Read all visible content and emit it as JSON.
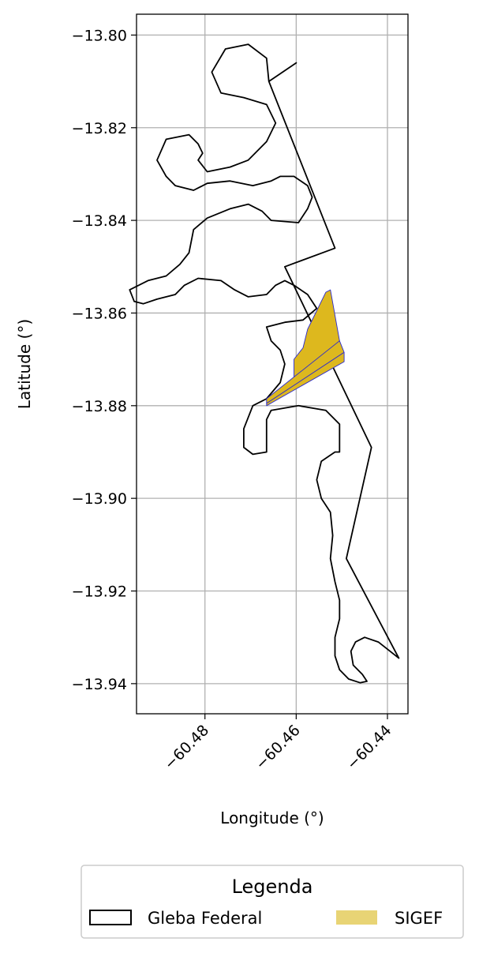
{
  "chart_data": {
    "type": "map",
    "xlabel": "Longitude (°)",
    "ylabel": "Latitude (°)",
    "x_ticks": [
      -60.48,
      -60.46,
      -60.44
    ],
    "x_tick_labels": [
      "−60.48",
      "−60.46",
      "−60.44"
    ],
    "y_ticks": [
      -13.8,
      -13.82,
      -13.84,
      -13.86,
      -13.88,
      -13.9,
      -13.92,
      -13.94
    ],
    "y_tick_labels": [
      "−13.80",
      "−13.82",
      "−13.84",
      "−13.86",
      "−13.88",
      "−13.90",
      "−13.92",
      "−13.94"
    ],
    "xlim": [
      -60.495,
      -60.4355
    ],
    "ylim": [
      -13.9465,
      -13.7955
    ],
    "grid": true,
    "legend": {
      "title": "Legenda",
      "placement": "bottom-center",
      "entries": [
        {
          "label": "Gleba Federal",
          "style": "outline",
          "edge": "#000000",
          "fill": "none"
        },
        {
          "label": "SIGEF",
          "style": "fill",
          "fill": "#e8d475"
        }
      ]
    },
    "layers": [
      {
        "name": "Gleba Federal",
        "edge_color": "#000000",
        "fill": "none",
        "polygon_lonlat": [
          [
            -60.466,
            -13.81
          ],
          [
            -60.46,
            -13.806
          ],
          [
            -60.466,
            -13.81
          ],
          [
            -60.4515,
            -13.846
          ],
          [
            -60.4625,
            -13.85
          ],
          [
            -60.4435,
            -13.889
          ],
          [
            -60.449,
            -13.913
          ],
          [
            -60.4375,
            -13.9345
          ],
          [
            -60.442,
            -13.931
          ],
          [
            -60.445,
            -13.93
          ],
          [
            -60.447,
            -13.931
          ],
          [
            -60.448,
            -13.933
          ],
          [
            -60.4475,
            -13.936
          ],
          [
            -60.4455,
            -13.938
          ],
          [
            -60.4445,
            -13.9395
          ],
          [
            -60.446,
            -13.9398
          ],
          [
            -60.4485,
            -13.939
          ],
          [
            -60.4505,
            -13.937
          ],
          [
            -60.4515,
            -13.934
          ],
          [
            -60.4515,
            -13.93
          ],
          [
            -60.4505,
            -13.926
          ],
          [
            -60.4505,
            -13.922
          ],
          [
            -60.4515,
            -13.918
          ],
          [
            -60.4525,
            -13.913
          ],
          [
            -60.452,
            -13.908
          ],
          [
            -60.4525,
            -13.903
          ],
          [
            -60.4545,
            -13.9
          ],
          [
            -60.4555,
            -13.896
          ],
          [
            -60.4545,
            -13.892
          ],
          [
            -60.4515,
            -13.89
          ],
          [
            -60.4505,
            -13.89
          ],
          [
            -60.4505,
            -13.884
          ],
          [
            -60.4535,
            -13.881
          ],
          [
            -60.4595,
            -13.88
          ],
          [
            -60.4655,
            -13.881
          ],
          [
            -60.4665,
            -13.883
          ],
          [
            -60.4665,
            -13.885
          ],
          [
            -60.4665,
            -13.888
          ],
          [
            -60.4665,
            -13.89
          ],
          [
            -60.4695,
            -13.8905
          ],
          [
            -60.4715,
            -13.889
          ],
          [
            -60.4715,
            -13.885
          ],
          [
            -60.4695,
            -13.88
          ],
          [
            -60.4665,
            -13.8785
          ],
          [
            -60.4635,
            -13.875
          ],
          [
            -60.4625,
            -13.871
          ],
          [
            -60.4635,
            -13.868
          ],
          [
            -60.4655,
            -13.866
          ],
          [
            -60.4665,
            -13.863
          ],
          [
            -60.4625,
            -13.862
          ],
          [
            -60.4585,
            -13.8615
          ],
          [
            -60.4555,
            -13.859
          ],
          [
            -60.4575,
            -13.856
          ],
          [
            -60.4605,
            -13.854
          ],
          [
            -60.4625,
            -13.853
          ],
          [
            -60.4645,
            -13.854
          ],
          [
            -60.4665,
            -13.856
          ],
          [
            -60.4705,
            -13.8565
          ],
          [
            -60.4735,
            -13.855
          ],
          [
            -60.4765,
            -13.853
          ],
          [
            -60.4815,
            -13.8525
          ],
          [
            -60.4845,
            -13.854
          ],
          [
            -60.4865,
            -13.856
          ],
          [
            -60.4905,
            -13.857
          ],
          [
            -60.4935,
            -13.858
          ],
          [
            -60.4955,
            -13.8575
          ],
          [
            -60.4965,
            -13.855
          ],
          [
            -60.4925,
            -13.853
          ],
          [
            -60.4885,
            -13.852
          ],
          [
            -60.4855,
            -13.8495
          ],
          [
            -60.4835,
            -13.847
          ],
          [
            -60.4825,
            -13.842
          ],
          [
            -60.4795,
            -13.8395
          ],
          [
            -60.4745,
            -13.8375
          ],
          [
            -60.4705,
            -13.8365
          ],
          [
            -60.4675,
            -13.838
          ],
          [
            -60.4655,
            -13.84
          ],
          [
            -60.4595,
            -13.8405
          ],
          [
            -60.4575,
            -13.8375
          ],
          [
            -60.4565,
            -13.835
          ],
          [
            -60.4575,
            -13.8325
          ],
          [
            -60.4605,
            -13.8305
          ],
          [
            -60.4635,
            -13.8305
          ],
          [
            -60.4655,
            -13.8315
          ],
          [
            -60.4695,
            -13.8325
          ],
          [
            -60.4745,
            -13.8315
          ],
          [
            -60.4795,
            -13.832
          ],
          [
            -60.4825,
            -13.8335
          ],
          [
            -60.4865,
            -13.8325
          ],
          [
            -60.4885,
            -13.8305
          ],
          [
            -60.4905,
            -13.827
          ],
          [
            -60.4885,
            -13.8225
          ],
          [
            -60.4835,
            -13.8215
          ],
          [
            -60.4815,
            -13.8235
          ],
          [
            -60.4805,
            -13.8255
          ],
          [
            -60.4815,
            -13.827
          ],
          [
            -60.4795,
            -13.8295
          ],
          [
            -60.4745,
            -13.8285
          ],
          [
            -60.4705,
            -13.827
          ],
          [
            -60.4665,
            -13.823
          ],
          [
            -60.4645,
            -13.819
          ],
          [
            -60.4665,
            -13.815
          ],
          [
            -60.4715,
            -13.8135
          ],
          [
            -60.4765,
            -13.8125
          ],
          [
            -60.4785,
            -13.808
          ],
          [
            -60.4755,
            -13.803
          ],
          [
            -60.4705,
            -13.802
          ],
          [
            -60.4665,
            -13.805
          ],
          [
            -60.466,
            -13.81
          ]
        ]
      },
      {
        "name": "SIGEF",
        "fill_color": "#ddb81e",
        "edge_color": "#2a2ad0",
        "parcels": [
          [
            [
              -60.4665,
              -13.8785
            ],
            [
              -60.4635,
              -13.877
            ],
            [
              -60.4605,
              -13.8745
            ],
            [
              -60.4605,
              -13.87
            ],
            [
              -60.4585,
              -13.8675
            ],
            [
              -60.4575,
              -13.8635
            ],
            [
              -60.4555,
              -13.8595
            ],
            [
              -60.4535,
              -13.8555
            ],
            [
              -60.4525,
              -13.855
            ],
            [
              -60.4505,
              -13.866
            ],
            [
              -60.4575,
              -13.8725
            ],
            [
              -60.4665,
              -13.8785
            ]
          ],
          [
            [
              -60.4665,
              -13.8785
            ],
            [
              -60.4505,
              -13.866
            ],
            [
              -60.4495,
              -13.8685
            ],
            [
              -60.4665,
              -13.8795
            ]
          ],
          [
            [
              -60.4665,
              -13.8795
            ],
            [
              -60.4495,
              -13.8685
            ],
            [
              -60.4495,
              -13.8705
            ],
            [
              -60.4665,
              -13.88
            ]
          ]
        ]
      }
    ]
  }
}
